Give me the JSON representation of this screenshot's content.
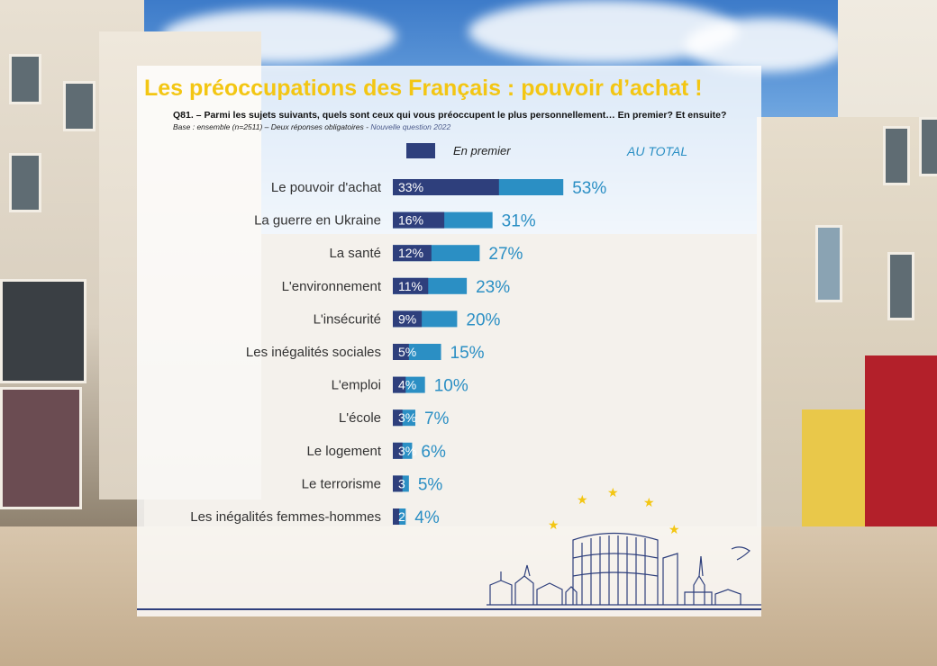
{
  "title": "Les préoccupations des Français : pouvoir d’achat !",
  "question": "Q81. – Parmi les sujets suivants, quels sont ceux qui vous préoccupent le plus personnellement… En premier? Et ensuite?",
  "base": {
    "text": "Base : ensemble (n=2511) – Deux réponses obligatoires - ",
    "new_question": "Nouvelle question 2022"
  },
  "legend": {
    "first_label": "En premier",
    "total_label": "AU TOTAL"
  },
  "colors": {
    "title": "#f3c613",
    "first_bar": "#2e3f7c",
    "total_bar": "#2b8fc4",
    "total_text": "#2b8fc4"
  },
  "chart_data": {
    "type": "bar",
    "orientation": "horizontal",
    "stacked_overlay": true,
    "categories": [
      "Le pouvoir d'achat",
      "La guerre en Ukraine",
      "La santé",
      "L'environnement",
      "L'insécurité",
      "Les inégalités sociales",
      "L'emploi",
      "L'école",
      "Le logement",
      "Le terrorisme",
      "Les inégalités femmes-hommes"
    ],
    "series": [
      {
        "name": "En premier",
        "values": [
          33,
          16,
          12,
          11,
          9,
          5,
          4,
          3,
          3,
          3,
          2
        ],
        "labels": [
          "33%",
          "16%",
          "12%",
          "11%",
          "9%",
          "5%",
          "4%",
          "3%",
          "3%",
          "3",
          "2"
        ]
      },
      {
        "name": "AU TOTAL",
        "values": [
          53,
          31,
          27,
          23,
          20,
          15,
          10,
          7,
          6,
          5,
          4
        ],
        "labels": [
          "53%",
          "31%",
          "27%",
          "23%",
          "20%",
          "15%",
          "10%",
          "7%",
          "6%",
          "5%",
          "4%"
        ]
      }
    ],
    "unit": "%"
  }
}
